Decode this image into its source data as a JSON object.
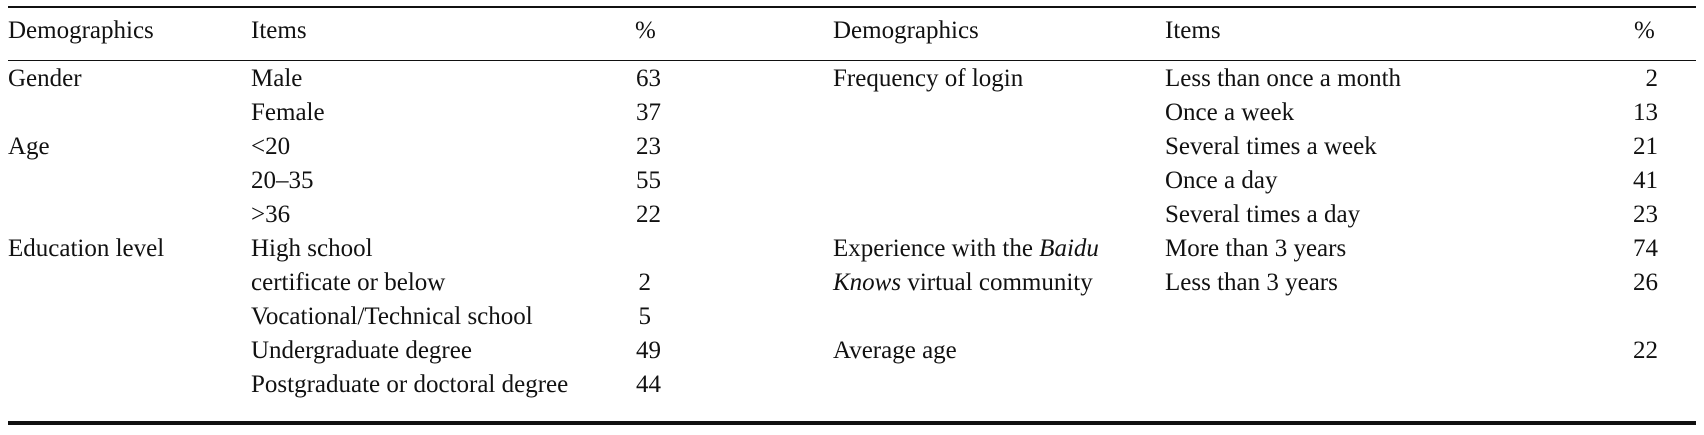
{
  "header": {
    "left_demographics": "Demographics",
    "left_items": "Items",
    "left_pct": "%",
    "right_demographics": "Demographics",
    "right_items": "Items",
    "right_pct": "%"
  },
  "left": {
    "gender": {
      "label": "Gender",
      "rows": [
        {
          "item": "Male",
          "pct": "63"
        },
        {
          "item": "Female",
          "pct": "37"
        }
      ]
    },
    "age": {
      "label": "Age",
      "rows": [
        {
          "item": "<20",
          "pct": "23"
        },
        {
          "item": "20–35",
          "pct": "55"
        },
        {
          "item": ">36",
          "pct": "22"
        }
      ]
    },
    "education": {
      "label": "Education level",
      "rows": [
        {
          "item": "High school",
          "pct": ""
        },
        {
          "item": "certificate or below",
          "pct": "2"
        },
        {
          "item": "Vocational/Technical school",
          "pct": "5"
        },
        {
          "item": "Undergraduate degree",
          "pct": "49"
        },
        {
          "item": "Postgraduate or doctoral degree",
          "pct": "44"
        }
      ]
    }
  },
  "right": {
    "login": {
      "label": "Frequency of login",
      "rows": [
        {
          "item": "Less than once a month",
          "pct": "2"
        },
        {
          "item": "Once a week",
          "pct": "13"
        },
        {
          "item": "Several times a week",
          "pct": "21"
        },
        {
          "item": "Once a day",
          "pct": "41"
        },
        {
          "item": "Several times a day",
          "pct": "23"
        }
      ]
    },
    "experience": {
      "label_line1_prefix": "Experience with the ",
      "label_line1_italic": "Baidu",
      "label_line2_italic": "Knows",
      "label_line2_suffix": " virtual community",
      "rows": [
        {
          "item": "More than 3 years",
          "pct": "74"
        },
        {
          "item": "Less than 3 years",
          "pct": "26"
        }
      ]
    },
    "average_age": {
      "label": "Average age",
      "pct": "22"
    }
  }
}
